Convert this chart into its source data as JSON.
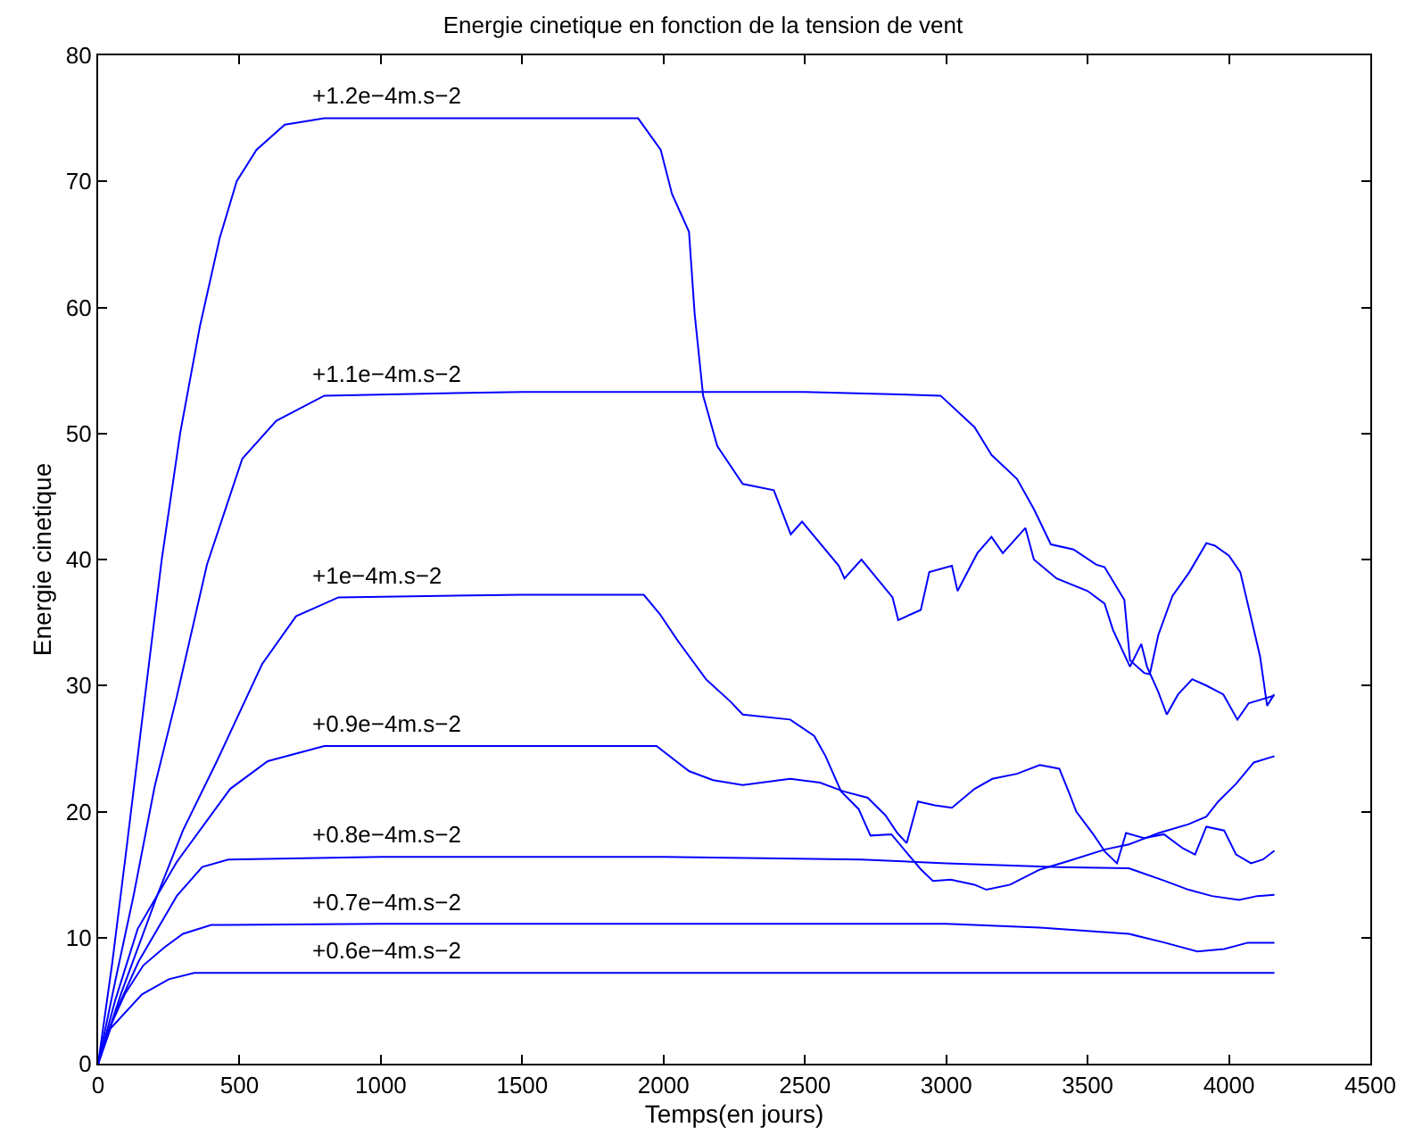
{
  "chart_data": {
    "type": "line",
    "title": "Energie cinetique en fonction de la tension de vent",
    "xlabel": "Temps(en jours)",
    "ylabel": "Energie cinetique",
    "xlim": [
      0,
      4500
    ],
    "xticks": [
      0,
      500,
      1000,
      1500,
      2000,
      2500,
      3000,
      3500,
      4000,
      4500
    ],
    "ylim": [
      0,
      80
    ],
    "yticks": [
      0,
      10,
      20,
      30,
      40,
      50,
      60,
      70,
      80
    ],
    "grid": false,
    "legend": false,
    "marker": "none",
    "line_style": "solid",
    "series": [
      {
        "name": "+1.2e−4m.s−2",
        "color": "#0000ff",
        "x": [
          0,
          50,
          100,
          165,
          225,
          290,
          360,
          430,
          490,
          560,
          660,
          800,
          1000,
          1500,
          1910,
          1990,
          2030,
          2090,
          2110,
          2140,
          2190,
          2280,
          2390,
          2450,
          2490,
          2620,
          2640,
          2700,
          2810,
          2830,
          2910,
          2940,
          3020,
          3040,
          3110,
          3160,
          3200,
          3280,
          3310,
          3390,
          3500,
          3560,
          3590,
          3650,
          3690,
          3710,
          3750,
          3780,
          3820,
          3870,
          3920,
          3980,
          4030,
          4070,
          4130,
          4160
        ],
        "values": [
          0,
          8,
          17,
          29,
          40,
          50,
          58.5,
          65.5,
          70,
          72.5,
          74.5,
          75,
          75,
          75,
          75,
          72.5,
          69,
          66,
          59.5,
          53,
          49,
          46,
          45.5,
          42,
          43,
          39.5,
          38.5,
          40,
          37,
          35.2,
          36,
          39,
          39.5,
          37.5,
          40.5,
          41.8,
          40.5,
          42.5,
          40,
          38.5,
          37.5,
          36.5,
          34.4,
          31.5,
          33.3,
          31.5,
          29.5,
          27.7,
          29.3,
          30.5,
          30,
          29.3,
          27.3,
          28.6,
          29,
          29.2
        ]
      },
      {
        "name": "+1.1e−4m.s−2",
        "color": "#0000ff",
        "x": [
          0,
          60,
          126,
          200,
          277,
          385,
          510,
          630,
          800,
          1500,
          2500,
          2980,
          3100,
          3160,
          3250,
          3310,
          3370,
          3450,
          3530,
          3560,
          3630,
          3650,
          3700,
          3720,
          3750,
          3800,
          3860,
          3920,
          3950,
          4000,
          4040,
          4080,
          4110,
          4135,
          4160
        ],
        "values": [
          0,
          6.5,
          13.4,
          22,
          29,
          39.6,
          48,
          51,
          53,
          53.3,
          53.3,
          53,
          50.5,
          48.3,
          46.4,
          44,
          41.2,
          40.8,
          39.6,
          39.4,
          36.8,
          32,
          31,
          30.9,
          34,
          37.1,
          39,
          41.3,
          41.1,
          40.3,
          39,
          35.2,
          32.3,
          28.4,
          29.3
        ]
      },
      {
        "name": "+1e−4m.s−2",
        "color": "#0000ff",
        "x": [
          0,
          80,
          210,
          300,
          420,
          580,
          700,
          850,
          1500,
          1930,
          1986,
          2049,
          2150,
          2238,
          2280,
          2448,
          2533,
          2573,
          2628,
          2690,
          2732,
          2806,
          2869,
          2911,
          2953,
          3016,
          3100,
          3142,
          3226,
          3331,
          3436,
          3562,
          3646,
          3752,
          3857,
          3920,
          3962,
          4025,
          4088,
          4161
        ],
        "values": [
          0,
          5.5,
          13.4,
          18.5,
          24,
          31.7,
          35.5,
          37,
          37.2,
          37.2,
          35.7,
          33.6,
          30.5,
          28.7,
          27.7,
          27.3,
          26,
          24.4,
          21.6,
          20.2,
          18.1,
          18.2,
          16.5,
          15.4,
          14.5,
          14.6,
          14.2,
          13.8,
          14.2,
          15.4,
          16.1,
          17,
          17.4,
          18.3,
          19,
          19.6,
          20.8,
          22.2,
          23.9,
          24.4
        ]
      },
      {
        "name": "+0.9e−4m.s−2",
        "color": "#0000ff",
        "x": [
          0,
          60,
          140,
          278,
          467,
          600,
          800,
          1500,
          1975,
          2091,
          2175,
          2280,
          2448,
          2553,
          2637,
          2722,
          2785,
          2827,
          2860,
          2900,
          2960,
          3020,
          3100,
          3163,
          3250,
          3331,
          3400,
          3436,
          3460,
          3520,
          3562,
          3604,
          3636,
          3700,
          3770,
          3836,
          3880,
          3920,
          3983,
          4025,
          4078,
          4120,
          4161
        ],
        "values": [
          0,
          5,
          10.7,
          16,
          21.8,
          24,
          25.2,
          25.2,
          25.2,
          23.2,
          22.5,
          22.1,
          22.6,
          22.3,
          21.6,
          21.1,
          19.7,
          18.3,
          17.5,
          20.8,
          20.5,
          20.3,
          21.8,
          22.6,
          23,
          23.7,
          23.4,
          21.4,
          20,
          18.2,
          16.8,
          15.9,
          18.3,
          17.9,
          18.2,
          17.1,
          16.6,
          18.8,
          18.5,
          16.6,
          15.9,
          16.2,
          16.9
        ]
      },
      {
        "name": "+0.8e−4m.s−2",
        "color": "#0000ff",
        "x": [
          0,
          60,
          143,
          278,
          368,
          460,
          1000,
          2000,
          2700,
          3000,
          3400,
          3646,
          3773,
          3857,
          3940,
          4036,
          4100,
          4161
        ],
        "values": [
          0,
          4,
          8.1,
          13.3,
          15.6,
          16.2,
          16.4,
          16.4,
          16.2,
          15.9,
          15.6,
          15.5,
          14.5,
          13.8,
          13.3,
          13,
          13.3,
          13.4
        ]
      },
      {
        "name": "+0.7e−4m.s−2",
        "color": "#0000ff",
        "x": [
          0,
          40,
          94,
          160,
          233,
          300,
          400,
          1000,
          3000,
          3331,
          3646,
          3773,
          3888,
          3983,
          4067,
          4161
        ],
        "values": [
          0,
          2.8,
          5.5,
          7.8,
          9.2,
          10.3,
          11,
          11.1,
          11.1,
          10.8,
          10.3,
          9.6,
          8.9,
          9.1,
          9.6,
          9.6
        ]
      },
      {
        "name": "+0.6e−4m.s−2",
        "color": "#0000ff",
        "x": [
          0,
          44,
          155,
          250,
          340,
          1000,
          2000,
          3000,
          4161
        ],
        "values": [
          0,
          2.8,
          5.5,
          6.7,
          7.2,
          7.2,
          7.2,
          7.2,
          7.2
        ]
      }
    ]
  }
}
